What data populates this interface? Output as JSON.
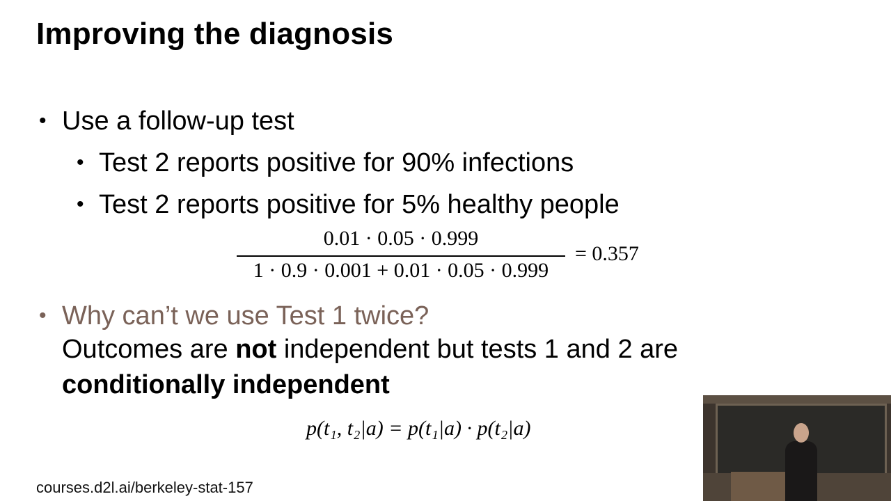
{
  "slide": {
    "title": "Improving the diagnosis",
    "bullets": {
      "b1": "Use a follow-up test",
      "b1_sub1": "Test 2 reports positive for 90% infections",
      "b1_sub2": "Test 2 reports positive for 5% healthy people",
      "b2_question": "Why can’t we use Test 1 twice?",
      "b2_line2_a": "Outcomes are ",
      "b2_line2_bold": "not",
      "b2_line2_b": " independent but tests 1 and 2 are",
      "b2_line3_bold": "conditionally independent"
    },
    "equation1": {
      "numerator": "0.01 · 0.05 · 0.999",
      "denominator": "1 · 0.9 · 0.001 + 0.01 · 0.05 · 0.999",
      "result": "= 0.357"
    },
    "equation2": "p(t₁, t₂|a) = p(t₁|a) · p(t₂|a)",
    "footer": "courses.d2l.ai/berkeley-stat-157",
    "bullet_glyph": "•"
  },
  "colors": {
    "muted_bullet_text": "#7a6258",
    "background": "#ffffff"
  }
}
